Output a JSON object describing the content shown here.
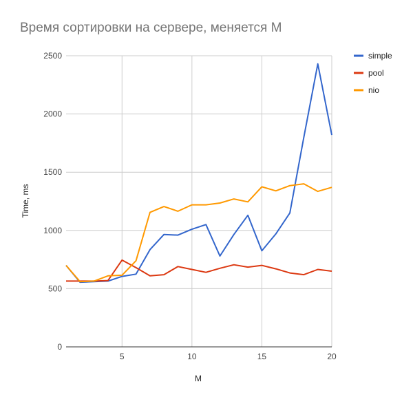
{
  "chart_data": {
    "type": "line",
    "title": "Время сортировки на сервере, меняется M",
    "xlabel": "M",
    "ylabel": "Time, ms",
    "xlim": [
      1,
      20
    ],
    "ylim": [
      0,
      2500
    ],
    "x_ticks": [
      5,
      10,
      15,
      20
    ],
    "y_ticks": [
      0,
      500,
      1000,
      1500,
      2000,
      2500
    ],
    "grid": true,
    "legend_position": "right",
    "x": [
      1,
      2,
      3,
      4,
      5,
      6,
      7,
      8,
      9,
      10,
      11,
      12,
      13,
      14,
      15,
      16,
      17,
      18,
      19,
      20
    ],
    "series": [
      {
        "name": "simple",
        "color": "#3366cc",
        "values": [
          700,
          555,
          560,
          565,
          605,
          625,
          835,
          965,
          960,
          1010,
          1050,
          780,
          965,
          1130,
          825,
          970,
          1150,
          1800,
          2430,
          1820
        ]
      },
      {
        "name": "pool",
        "color": "#dc3912",
        "values": [
          565,
          565,
          565,
          570,
          745,
          680,
          610,
          620,
          690,
          665,
          640,
          675,
          705,
          685,
          700,
          670,
          635,
          620,
          665,
          650
        ]
      },
      {
        "name": "nio",
        "color": "#ff9900",
        "values": [
          700,
          560,
          565,
          610,
          615,
          740,
          1155,
          1205,
          1165,
          1220,
          1220,
          1235,
          1270,
          1245,
          1375,
          1340,
          1385,
          1400,
          1335,
          1370
        ]
      }
    ]
  }
}
